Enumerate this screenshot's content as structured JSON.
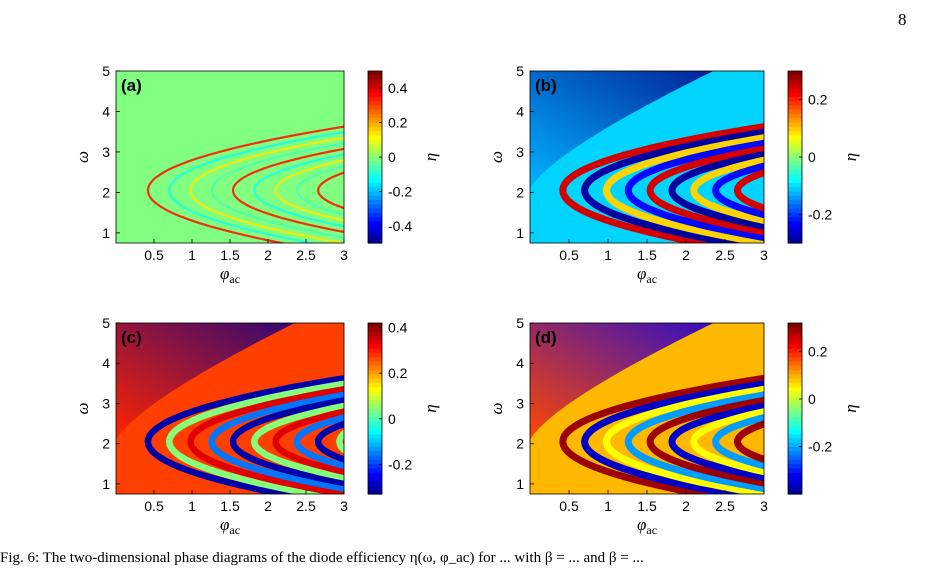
{
  "page": {
    "number": "8"
  },
  "chart_data": [
    {
      "type": "heatmap",
      "panel_label": "(a)",
      "xlabel": "φ_ac",
      "ylabel": "ω",
      "colorbar_label": "η",
      "xlim": [
        0,
        3
      ],
      "ylim": [
        0.75,
        5
      ],
      "x_ticks": [
        "0.5",
        "1",
        "1.5",
        "2",
        "2.5",
        "3"
      ],
      "y_ticks": [
        "1",
        "2",
        "3",
        "4",
        "5"
      ],
      "colorbar_ticks": [
        {
          "value": 0.4,
          "label": "0.4"
        },
        {
          "value": 0.2,
          "label": "0.2"
        },
        {
          "value": 0,
          "label": "0"
        },
        {
          "value": -0.2,
          "label": "-0.2"
        },
        {
          "value": -0.4,
          "label": "-0.4"
        }
      ],
      "colorbar_range": [
        -0.5,
        0.5
      ],
      "colormap": "jet",
      "background_value": 0.0
    },
    {
      "type": "heatmap",
      "panel_label": "(b)",
      "xlabel": "φ_ac",
      "ylabel": "ω",
      "colorbar_label": "η",
      "xlim": [
        0,
        3
      ],
      "ylim": [
        0.75,
        5
      ],
      "x_ticks": [
        "0.5",
        "1",
        "1.5",
        "2",
        "2.5",
        "3"
      ],
      "y_ticks": [
        "1",
        "2",
        "3",
        "4",
        "5"
      ],
      "colorbar_ticks": [
        {
          "value": 0.2,
          "label": "0.2"
        },
        {
          "value": 0,
          "label": "0"
        },
        {
          "value": -0.2,
          "label": "-0.2"
        }
      ],
      "colorbar_range": [
        -0.3,
        0.3
      ],
      "colormap": "jet",
      "background_value": -0.1
    },
    {
      "type": "heatmap",
      "panel_label": "(c)",
      "xlabel": "φ_ac",
      "ylabel": "ω",
      "colorbar_label": "η",
      "xlim": [
        0,
        3
      ],
      "ylim": [
        0.75,
        5
      ],
      "x_ticks": [
        "0.5",
        "1",
        "1.5",
        "2",
        "2.5",
        "3"
      ],
      "y_ticks": [
        "1",
        "2",
        "3",
        "4",
        "5"
      ],
      "colorbar_ticks": [
        {
          "value": 0.4,
          "label": "0.4"
        },
        {
          "value": 0.2,
          "label": "0.2"
        },
        {
          "value": 0,
          "label": "0"
        },
        {
          "value": -0.2,
          "label": "-0.2"
        }
      ],
      "colorbar_range": [
        -0.33,
        0.42
      ],
      "colormap": "jet",
      "background_value": 0.28
    },
    {
      "type": "heatmap",
      "panel_label": "(d)",
      "xlabel": "φ_ac",
      "ylabel": "ω",
      "colorbar_label": "η",
      "xlim": [
        0,
        3
      ],
      "ylim": [
        0.75,
        5
      ],
      "x_ticks": [
        "0.5",
        "1",
        "1.5",
        "2",
        "2.5",
        "3"
      ],
      "y_ticks": [
        "1",
        "2",
        "3",
        "4",
        "5"
      ],
      "colorbar_ticks": [
        {
          "value": 0.2,
          "label": "0.2"
        },
        {
          "value": 0,
          "label": "0"
        },
        {
          "value": -0.2,
          "label": "-0.2"
        }
      ],
      "colorbar_range": [
        -0.4,
        0.32
      ],
      "colormap": "jet",
      "background_value": 0.1
    }
  ],
  "caption_fragment": "Fig. 6: The two-dimensional phase diagrams of the diode efficiency η(ω, φ_ac) for ... with β = ... and β = ..."
}
